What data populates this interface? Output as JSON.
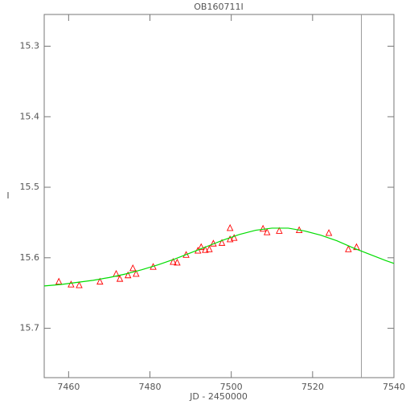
{
  "chart_data": {
    "type": "scatter",
    "title": "OB160711I",
    "x_label": "JD - 2450000",
    "y_label": "I",
    "xlim": [
      7454,
      7540
    ],
    "ylim": [
      15.255,
      15.77
    ],
    "y_inverted": true,
    "xticks": [
      7460,
      7480,
      7500,
      7520,
      7540
    ],
    "yticks": [
      15.3,
      15.4,
      15.5,
      15.6,
      15.7
    ],
    "vline": 7532,
    "series": [
      {
        "name": "data",
        "color": "#ff0000",
        "marker": "triangle",
        "x": [
          7457.6,
          7460.6,
          7462.6,
          7467.7,
          7471.7,
          7472.6,
          7474.6,
          7475.8,
          7476.6,
          7480.8,
          7485.7,
          7486.7,
          7488.9,
          7491.8,
          7492.6,
          7493.6,
          7494.6,
          7495.6,
          7497.7,
          7499.7,
          7499.7,
          7500.7,
          7507.8,
          7508.8,
          7511.8,
          7516.7,
          7524.0,
          7528.8,
          7530.8
        ],
        "values": [
          15.634,
          15.638,
          15.639,
          15.634,
          15.623,
          15.63,
          15.625,
          15.615,
          15.623,
          15.613,
          15.606,
          15.607,
          15.596,
          15.59,
          15.585,
          15.589,
          15.588,
          15.58,
          15.579,
          15.574,
          15.558,
          15.572,
          15.559,
          15.564,
          15.562,
          15.561,
          15.565,
          15.588,
          15.585
        ]
      },
      {
        "name": "model",
        "color": "#00dd00",
        "marker": "line",
        "x": [
          7454,
          7458,
          7462,
          7466,
          7470,
          7474,
          7478,
          7482,
          7486,
          7490,
          7494,
          7498,
          7502,
          7506,
          7510,
          7514,
          7518,
          7522,
          7526,
          7530,
          7534,
          7538,
          7540
        ],
        "values": [
          15.64,
          15.638,
          15.635,
          15.632,
          15.628,
          15.623,
          15.617,
          15.61,
          15.602,
          15.593,
          15.584,
          15.575,
          15.567,
          15.561,
          15.558,
          15.558,
          15.562,
          15.568,
          15.576,
          15.586,
          15.595,
          15.604,
          15.608
        ]
      }
    ]
  }
}
